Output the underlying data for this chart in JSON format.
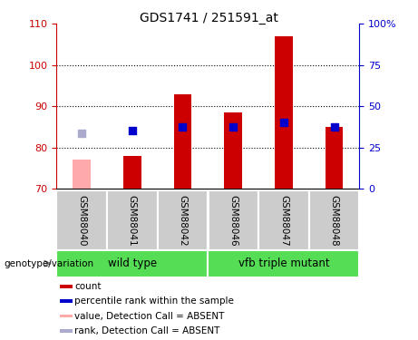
{
  "title": "GDS1741 / 251591_at",
  "samples": [
    "GSM88040",
    "GSM88041",
    "GSM88042",
    "GSM88046",
    "GSM88047",
    "GSM88048"
  ],
  "bar_values": [
    null,
    78.0,
    93.0,
    88.5,
    107.0,
    85.0
  ],
  "bar_absent_values": [
    77.0,
    null,
    null,
    null,
    null,
    null
  ],
  "rank_values": [
    null,
    84.0,
    85.0,
    85.0,
    86.0,
    85.0
  ],
  "rank_absent_values": [
    83.5,
    null,
    null,
    null,
    null,
    null
  ],
  "bar_color": "#cc0000",
  "bar_absent_color": "#ffaaaa",
  "rank_color": "#0000cc",
  "rank_absent_color": "#aaaacc",
  "ylim": [
    70,
    110
  ],
  "yticks": [
    70,
    80,
    90,
    100,
    110
  ],
  "y2lim": [
    0,
    100
  ],
  "y2ticks": [
    0,
    25,
    50,
    75,
    100
  ],
  "y2ticklabels": [
    "0",
    "25",
    "50",
    "75",
    "100%"
  ],
  "bar_width": 0.35,
  "rank_marker_size": 30,
  "bg_color": "#cccccc",
  "plot_bg": "#ffffff",
  "group_bg": "#55dd55",
  "wt_label": "wild type",
  "vfb_label": "vfb triple mutant",
  "genotype_label": "genotype/variation",
  "legend_items": [
    {
      "color": "#cc0000",
      "label": "count"
    },
    {
      "color": "#0000cc",
      "label": "percentile rank within the sample"
    },
    {
      "color": "#ffaaaa",
      "label": "value, Detection Call = ABSENT"
    },
    {
      "color": "#aaaacc",
      "label": "rank, Detection Call = ABSENT"
    }
  ]
}
